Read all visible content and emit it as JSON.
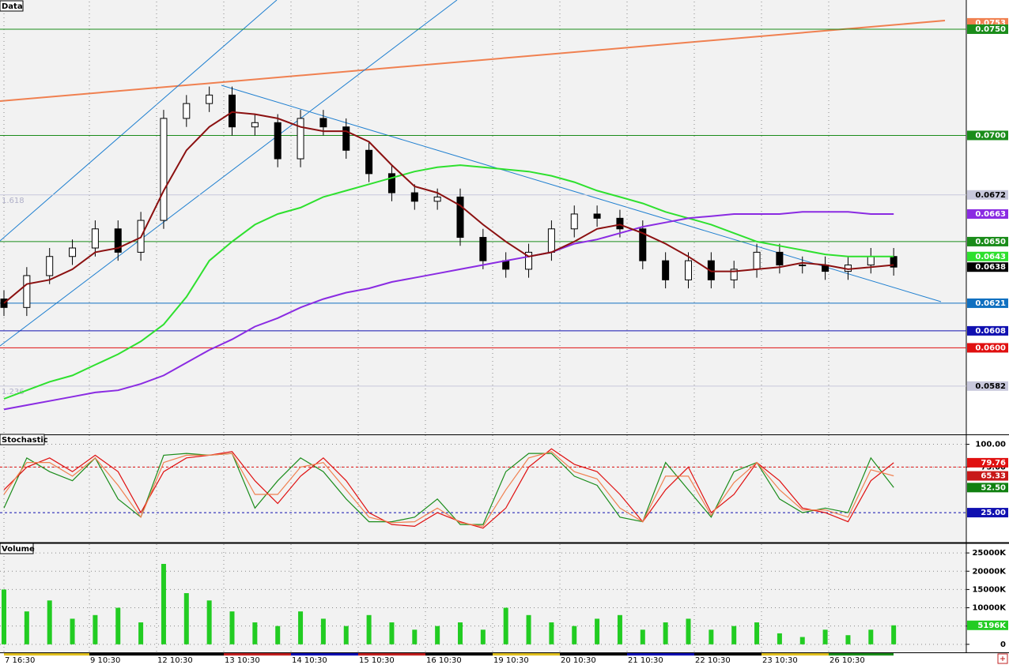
{
  "x_axis": {
    "labels": [
      "7 16:30",
      "9 10:30",
      "12 10:30",
      "13 10:30",
      "14 10:30",
      "15 10:30",
      "16 10:30",
      "19 10:30",
      "20 10:30",
      "21 10:30",
      "22 10:30",
      "23 10:30",
      "26 10:30"
    ]
  },
  "charts": [
    {
      "type": "candlestick",
      "title": "Data",
      "ylim": [
        0.056,
        0.0763
      ],
      "open": [
        0.0623,
        0.0619,
        0.0634,
        0.0643,
        0.0647,
        0.0656,
        0.0645,
        0.066,
        0.0708,
        0.0715,
        0.0719,
        0.0704,
        0.0706,
        0.0689,
        0.0708,
        0.0704,
        0.0693,
        0.0682,
        0.0673,
        0.0669,
        0.0671,
        0.0652,
        0.0641,
        0.0637,
        0.0645,
        0.0656,
        0.0663,
        0.0661,
        0.0656,
        0.0641,
        0.0632,
        0.0641,
        0.0632,
        0.0637,
        0.0645,
        0.0639,
        0.0639,
        0.0636,
        0.0639,
        0.0643
      ],
      "high": [
        0.0627,
        0.0638,
        0.0647,
        0.0651,
        0.066,
        0.066,
        0.0664,
        0.0712,
        0.0719,
        0.0723,
        0.0723,
        0.071,
        0.071,
        0.0712,
        0.0712,
        0.0708,
        0.0697,
        0.0686,
        0.0677,
        0.0675,
        0.0675,
        0.0656,
        0.0645,
        0.0649,
        0.066,
        0.0667,
        0.0667,
        0.0665,
        0.066,
        0.0645,
        0.0645,
        0.0645,
        0.0641,
        0.0649,
        0.0649,
        0.0643,
        0.0643,
        0.0643,
        0.0647,
        0.0647
      ],
      "low": [
        0.0615,
        0.0615,
        0.063,
        0.0639,
        0.0643,
        0.0641,
        0.0641,
        0.0656,
        0.0704,
        0.0711,
        0.07,
        0.07,
        0.0685,
        0.0685,
        0.07,
        0.0689,
        0.0678,
        0.0669,
        0.0665,
        0.0665,
        0.0648,
        0.0637,
        0.0633,
        0.0633,
        0.0641,
        0.0652,
        0.0657,
        0.0652,
        0.0637,
        0.0628,
        0.0628,
        0.0628,
        0.0628,
        0.0633,
        0.0635,
        0.0635,
        0.0632,
        0.0632,
        0.0635,
        0.0634
      ],
      "close": [
        0.0619,
        0.0634,
        0.0643,
        0.0647,
        0.0656,
        0.0645,
        0.066,
        0.0708,
        0.0715,
        0.0719,
        0.0704,
        0.0706,
        0.0689,
        0.0708,
        0.0704,
        0.0693,
        0.0682,
        0.0673,
        0.0669,
        0.0671,
        0.0652,
        0.0641,
        0.0637,
        0.0645,
        0.0656,
        0.0663,
        0.0661,
        0.0656,
        0.0641,
        0.0632,
        0.0641,
        0.0632,
        0.0637,
        0.0645,
        0.0639,
        0.0639,
        0.0636,
        0.0639,
        0.0643,
        0.0638
      ],
      "series": [
        {
          "color": "#2ee02e",
          "values": [
            0.0576,
            0.058,
            0.0584,
            0.0587,
            0.0592,
            0.0597,
            0.0603,
            0.0611,
            0.0624,
            0.0641,
            0.065,
            0.0658,
            0.0663,
            0.0666,
            0.0671,
            0.0674,
            0.0677,
            0.068,
            0.0683,
            0.0685,
            0.0686,
            0.0685,
            0.0684,
            0.0683,
            0.0681,
            0.0678,
            0.0674,
            0.0671,
            0.0668,
            0.0664,
            0.0661,
            0.0658,
            0.0654,
            0.065,
            0.0648,
            0.0646,
            0.0644,
            0.0643,
            0.0643,
            0.0643
          ]
        },
        {
          "color": "#8a2be2",
          "values": [
            0.0571,
            0.0573,
            0.0575,
            0.0577,
            0.0579,
            0.058,
            0.0583,
            0.0587,
            0.0593,
            0.0599,
            0.0604,
            0.061,
            0.0614,
            0.0619,
            0.0623,
            0.0626,
            0.0628,
            0.0631,
            0.0633,
            0.0635,
            0.0637,
            0.0639,
            0.0641,
            0.0643,
            0.0645,
            0.0649,
            0.0651,
            0.0654,
            0.0657,
            0.0659,
            0.0661,
            0.0662,
            0.0663,
            0.0663,
            0.0663,
            0.0664,
            0.0664,
            0.0664,
            0.0663,
            0.0663
          ]
        },
        {
          "color": "#8b1010",
          "values": [
            0.0621,
            0.063,
            0.0632,
            0.0637,
            0.0645,
            0.0647,
            0.0652,
            0.0674,
            0.0693,
            0.0704,
            0.0711,
            0.071,
            0.0708,
            0.0704,
            0.0702,
            0.0702,
            0.0697,
            0.0686,
            0.0676,
            0.0673,
            0.0667,
            0.0658,
            0.065,
            0.0643,
            0.0645,
            0.065,
            0.0656,
            0.0658,
            0.0654,
            0.0649,
            0.0643,
            0.0636,
            0.0636,
            0.0637,
            0.0638,
            0.064,
            0.0639,
            0.0637,
            0.0638,
            0.0639
          ]
        }
      ],
      "levels": [
        {
          "value": 0.0753,
          "label": "0.0753",
          "color": "#f08050"
        },
        {
          "value": 0.075,
          "label": "0.0750",
          "color": "#1a8c1a",
          "line": true
        },
        {
          "value": 0.07,
          "label": "0.0700",
          "color": "#1a8c1a",
          "line": true
        },
        {
          "value": 0.0672,
          "label": "0.0672",
          "color": "#c8c8dc",
          "text": "#000000",
          "line": true,
          "fib": "1.618"
        },
        {
          "value": 0.0663,
          "label": "0.0663",
          "color": "#8a2be2"
        },
        {
          "value": 0.065,
          "label": "0.0650",
          "color": "#1a8c1a",
          "line": true
        },
        {
          "value": 0.0643,
          "label": "0.0643",
          "color": "#2ee02e"
        },
        {
          "value": 0.0638,
          "label": "0.0638",
          "color": "#000000"
        },
        {
          "value": 0.0621,
          "label": "0.0621",
          "color": "#1070c0",
          "line": true
        },
        {
          "value": 0.0608,
          "label": "0.0608",
          "color": "#1010b0",
          "line": true
        },
        {
          "value": 0.06,
          "label": "0.0600",
          "color": "#e01010",
          "line": true
        },
        {
          "value": 0.0582,
          "label": "0.0582",
          "color": "#c8c8dc",
          "text": "#000000",
          "line": true,
          "fib": "1.236"
        }
      ]
    },
    {
      "type": "line",
      "title": "Stochastic",
      "ylim": [
        -7,
        110
      ],
      "grid": true,
      "yticks": [
        {
          "value": 100,
          "label": "100.00"
        },
        {
          "value": 75,
          "label": "75.00"
        }
      ],
      "hlines": [
        {
          "value": 75,
          "color": "#e01010"
        },
        {
          "value": 25,
          "color": "#1010b0"
        }
      ],
      "series": [
        {
          "color": "#1a8c1a",
          "values": [
            30,
            85,
            70,
            60,
            85,
            40,
            20,
            88,
            90,
            88,
            90,
            30,
            60,
            85,
            70,
            40,
            15,
            15,
            20,
            40,
            12,
            12,
            70,
            90,
            90,
            65,
            55,
            20,
            15,
            80,
            50,
            20,
            70,
            80,
            40,
            25,
            30,
            25,
            85,
            52.5
          ]
        },
        {
          "color": "#e01010",
          "values": [
            50,
            75,
            85,
            70,
            88,
            70,
            25,
            70,
            85,
            88,
            92,
            60,
            35,
            65,
            85,
            60,
            25,
            12,
            10,
            25,
            15,
            8,
            30,
            75,
            95,
            78,
            70,
            45,
            15,
            50,
            75,
            25,
            45,
            80,
            60,
            30,
            25,
            15,
            60,
            79.76
          ]
        },
        {
          "color": "#f08050",
          "values": [
            45,
            80,
            80,
            65,
            85,
            55,
            20,
            80,
            88,
            88,
            90,
            45,
            45,
            75,
            80,
            50,
            20,
            14,
            15,
            30,
            14,
            10,
            50,
            85,
            92,
            70,
            62,
            30,
            15,
            65,
            65,
            22,
            58,
            80,
            50,
            28,
            28,
            20,
            72,
            65.33
          ]
        }
      ],
      "levels": [
        {
          "value": 79.76,
          "label": "79.76",
          "color": "#e01010"
        },
        {
          "value": 65.33,
          "label": "65.33",
          "color": "#c81818"
        },
        {
          "value": 52.5,
          "label": "52.50",
          "color": "#108010"
        },
        {
          "value": 25,
          "label": "25.00",
          "color": "#1010b0"
        }
      ]
    },
    {
      "type": "bar",
      "title": "Volume",
      "ylim": [
        -2200,
        27400
      ],
      "grid": true,
      "color": "#22cc22",
      "yticks": [
        0,
        {
          "value": 5000,
          "label": "5000K"
        },
        {
          "value": 10000,
          "label": "10000K"
        },
        {
          "value": 15000,
          "label": "15000K"
        },
        {
          "value": 20000,
          "label": "20000K"
        },
        {
          "value": 25000,
          "label": "25000K"
        }
      ],
      "values": [
        15000,
        9000,
        12000,
        7000,
        8000,
        10000,
        6000,
        22000,
        14000,
        12000,
        9000,
        6000,
        5000,
        9000,
        7000,
        5000,
        8000,
        6000,
        4000,
        5000,
        6000,
        4000,
        10000,
        8000,
        6000,
        5000,
        7000,
        8000,
        4000,
        6000,
        7000,
        4000,
        5000,
        6000,
        3000,
        2000,
        4000,
        2500,
        4000,
        5196
      ],
      "levels": [
        {
          "value": 5196,
          "label": "5196K",
          "color": "#22cc22"
        }
      ]
    }
  ]
}
